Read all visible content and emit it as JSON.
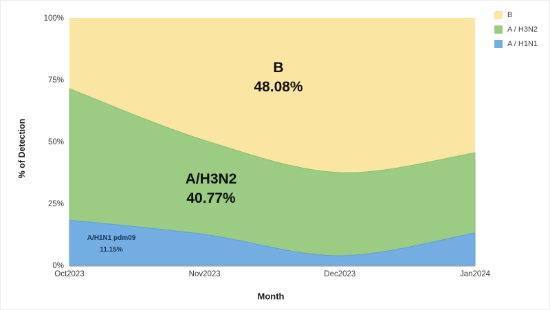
{
  "chart_data": {
    "type": "area",
    "stacked": true,
    "normalized_percent": true,
    "title": "",
    "xlabel": "Month",
    "ylabel": "% of Detection",
    "x": [
      "Oct2023",
      "Nov2023",
      "Dec2023",
      "Jan2024"
    ],
    "ylim": [
      0,
      100
    ],
    "yticks": [
      0,
      25,
      50,
      75,
      100
    ],
    "ytick_labels": [
      "0%",
      "25%",
      "50%",
      "75%",
      "100%"
    ],
    "grid": false,
    "axis_line_color": "#ababab",
    "tick_text_color": "#383838",
    "series": [
      {
        "name": "A / H1N1",
        "color": "#73ade1",
        "edge_color": "#5f9fd8",
        "values": [
          18.3,
          12.5,
          3.9,
          13.1
        ]
      },
      {
        "name": "A / H3N2",
        "color": "#9ccb83",
        "edge_color": "#8cbf72",
        "values": [
          53.1,
          38.0,
          33.6,
          32.4
        ]
      },
      {
        "name": "B",
        "color": "#fae6a2",
        "edge_color": "#f3dd92",
        "values": [
          28.6,
          49.5,
          62.5,
          54.5
        ]
      }
    ],
    "legend": {
      "position": "top-right",
      "items": [
        "B",
        "A / H3N2",
        "A / H1N1"
      ]
    },
    "annotations": [
      {
        "id": "b",
        "line1": "B",
        "line2": "48.08%",
        "meaning": "overall share of B"
      },
      {
        "id": "h3n2",
        "line1": "A/H3N2",
        "line2": "40.77%",
        "meaning": "overall share of A/H3N2"
      },
      {
        "id": "h1n1",
        "line1": "A/H1N1 pdm09",
        "line2": "11.15%",
        "meaning": "overall share of A/H1N1 pdm09"
      }
    ]
  }
}
